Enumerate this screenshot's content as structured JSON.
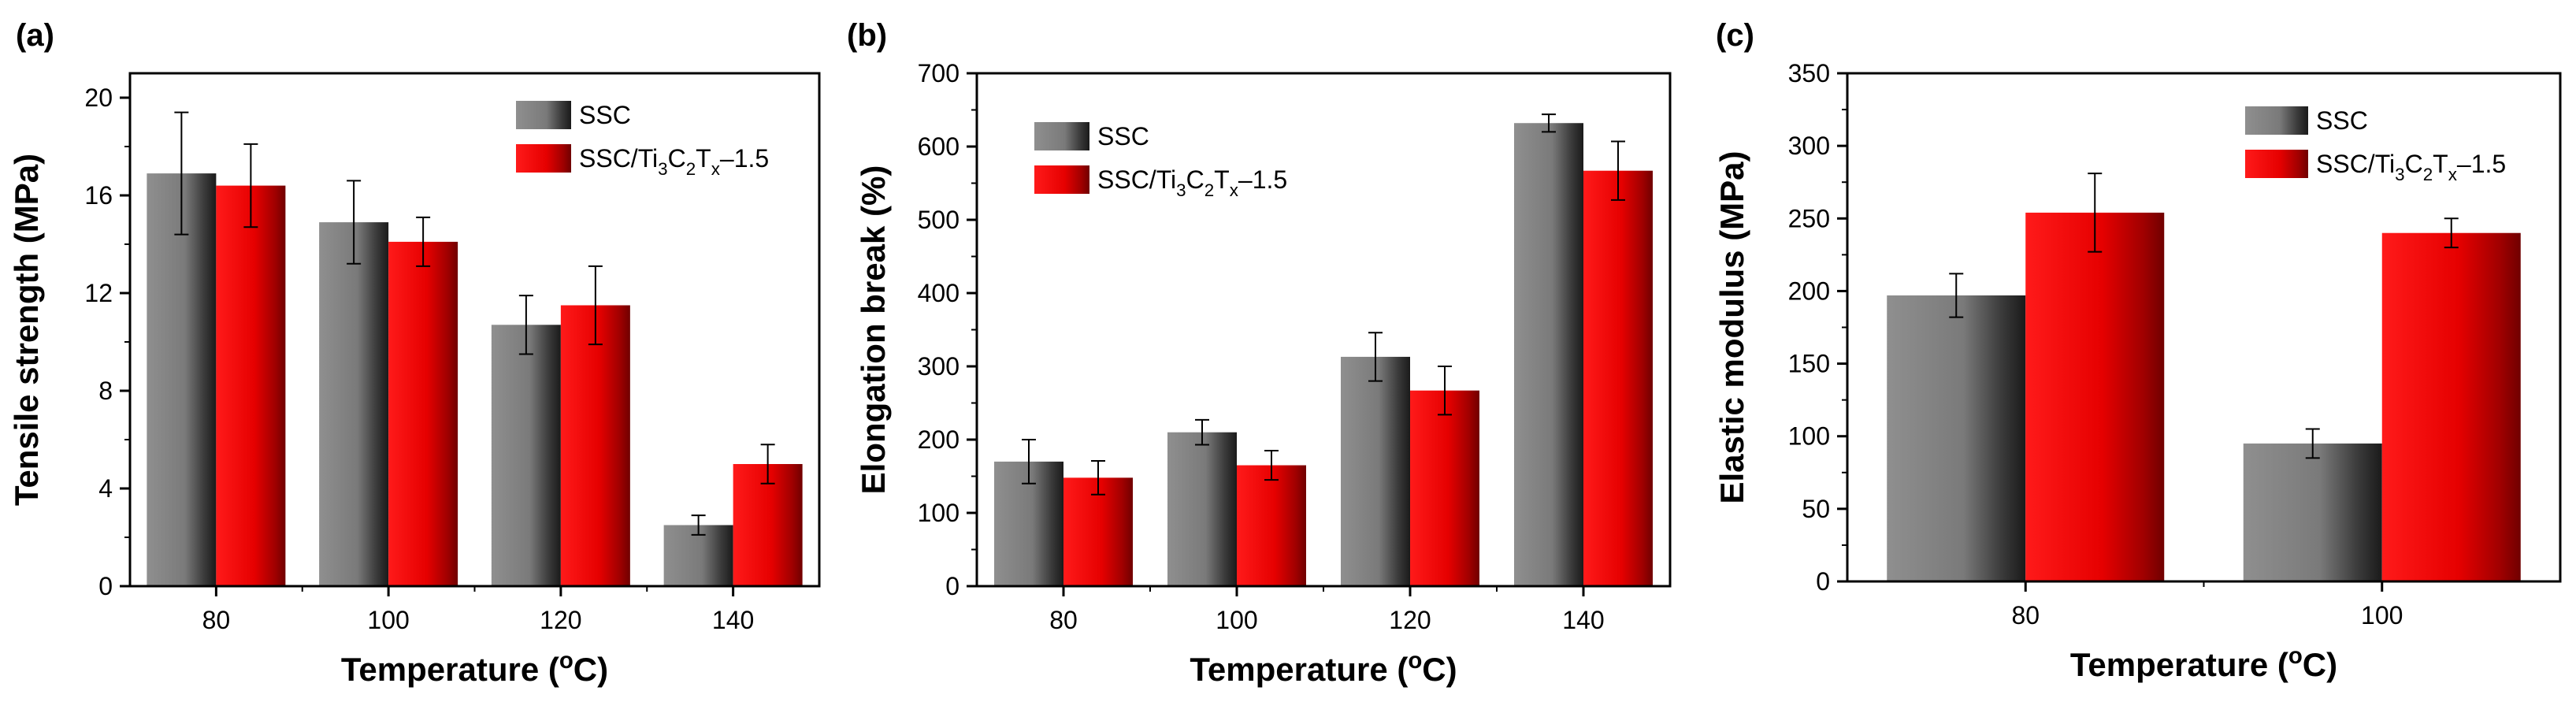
{
  "figure": {
    "colors": {
      "SSC": "#666666",
      "SSC/Ti3C2Tx-1.5": "#e00000"
    },
    "legend_entries": [
      {
        "name": "SSC",
        "parts": [
          {
            "text": "SSC"
          }
        ]
      },
      {
        "name": "SSC/Ti3C2Tx-1.5",
        "parts": [
          {
            "text": "SSC/Ti"
          },
          {
            "text": "3",
            "sub": true
          },
          {
            "text": "C"
          },
          {
            "text": "2",
            "sub": true
          },
          {
            "text": "T"
          },
          {
            "text": "x",
            "sub": true
          },
          {
            "text": "–1.5"
          }
        ]
      }
    ],
    "xlabel_parts": [
      {
        "text": "Temperature ("
      },
      {
        "text": "o",
        "sup": true
      },
      {
        "text": "C)"
      }
    ]
  },
  "chart_data": [
    {
      "type": "bar",
      "panel_label": "(a)",
      "title": "",
      "categories": [
        "80",
        "100",
        "120",
        "140"
      ],
      "series": [
        {
          "name": "SSC",
          "values": [
            16.9,
            14.9,
            10.7,
            2.5
          ],
          "errors": [
            2.5,
            1.7,
            1.2,
            0.4
          ]
        },
        {
          "name": "SSC/Ti3C2Tx-1.5",
          "values": [
            16.4,
            14.1,
            11.5,
            5.0
          ],
          "errors": [
            1.7,
            1.0,
            1.6,
            0.8
          ]
        }
      ],
      "xlabel": "Temperature (oC)",
      "ylabel": "Tensile strength (MPa)",
      "ylim": [
        0,
        21
      ],
      "yticks": [
        0,
        4,
        8,
        12,
        16,
        20
      ],
      "legend": "top-right"
    },
    {
      "type": "bar",
      "panel_label": "(b)",
      "title": "",
      "categories": [
        "80",
        "100",
        "120",
        "140"
      ],
      "series": [
        {
          "name": "SSC",
          "values": [
            170,
            210,
            313,
            632
          ],
          "errors": [
            30,
            17,
            33,
            12
          ]
        },
        {
          "name": "SSC/Ti3C2Tx-1.5",
          "values": [
            148,
            165,
            267,
            567
          ],
          "errors": [
            23,
            20,
            33,
            40
          ]
        }
      ],
      "xlabel": "Temperature (oC)",
      "ylabel": "Elongation break (%)",
      "ylim": [
        0,
        700
      ],
      "yticks": [
        0,
        100,
        200,
        300,
        400,
        500,
        600,
        700
      ],
      "legend": "top-left"
    },
    {
      "type": "bar",
      "panel_label": "(c)",
      "title": "",
      "categories": [
        "80",
        "100"
      ],
      "series": [
        {
          "name": "SSC",
          "values": [
            197,
            95
          ],
          "errors": [
            15,
            10
          ]
        },
        {
          "name": "SSC/Ti3C2Tx-1.5",
          "values": [
            254,
            240
          ],
          "errors": [
            27,
            10
          ]
        }
      ],
      "xlabel": "Temperature (oC)",
      "ylabel": "Elastic modulus (MPa)",
      "ylim": [
        0,
        350
      ],
      "yticks": [
        0,
        50,
        100,
        150,
        200,
        250,
        300,
        350
      ],
      "legend": "top-right"
    }
  ]
}
